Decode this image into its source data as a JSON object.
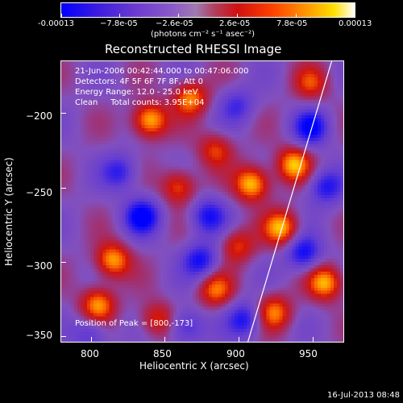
{
  "colorbar": {
    "labels": [
      "-0.00013",
      "−7.8e-05",
      "−2.6e-05",
      "2.6e-05",
      "7.8e-05",
      "0.00013"
    ],
    "unit": "(photons cm⁻² s⁻¹ asec⁻²)",
    "colors": [
      "#0000ff",
      "#8b5ac8",
      "#d01010",
      "#ff9a00",
      "#ffffff"
    ],
    "range": [
      -0.00013,
      0.00013
    ]
  },
  "plot": {
    "title": "Reconstructed RHESSI Image",
    "annotations": [
      "21-Jun-2006 00:42:44.000 to 00:47:06.000",
      "Detectors: 4F 5F 6F 7F 8F, Att 0",
      "Energy Range: 12.0 - 25.0 keV",
      "Clean     Total counts: 3.95E+04"
    ],
    "peak_label": "Position of Peak = [800,-173]"
  },
  "footer": {
    "timestamp": "16-Jul-2013 08:48"
  },
  "chart_data": {
    "type": "heatmap",
    "title": "Reconstructed RHESSI Image",
    "xlabel": "Heliocentric X (arcsec)",
    "ylabel": "Heliocentric Y (arcsec)",
    "xlim": [
      780,
      972
    ],
    "ylim": [
      -355,
      -165
    ],
    "xticks": [
      800,
      850,
      900,
      950
    ],
    "yticks": [
      -200,
      -250,
      -300,
      -350
    ],
    "xtick_labels": [
      "800",
      "850",
      "900",
      "950"
    ],
    "ytick_labels": [
      "−200",
      "−250",
      "−300",
      "−350"
    ],
    "limb_line": [
      [
        963,
        -165
      ],
      [
        906,
        -355
      ]
    ],
    "peak_position": [
      800,
      -173
    ],
    "colorbar_range": [
      -0.00013,
      0.00013
    ],
    "hotspots": [
      {
        "x": 910,
        "y": -248,
        "v": 1.0
      },
      {
        "x": 938,
        "y": -235,
        "v": 0.9
      },
      {
        "x": 840,
        "y": -205,
        "v": 1.0
      },
      {
        "x": 815,
        "y": -300,
        "v": 0.9
      },
      {
        "x": 805,
        "y": -330,
        "v": 0.85
      },
      {
        "x": 868,
        "y": -190,
        "v": 0.8
      },
      {
        "x": 860,
        "y": -250,
        "v": 0.7
      },
      {
        "x": 900,
        "y": -290,
        "v": 0.6
      },
      {
        "x": 930,
        "y": -278,
        "v": 0.9
      },
      {
        "x": 885,
        "y": -320,
        "v": 0.7
      },
      {
        "x": 960,
        "y": -315,
        "v": 0.9
      },
      {
        "x": 925,
        "y": -335,
        "v": 0.75
      },
      {
        "x": 845,
        "y": -340,
        "v": 0.6
      },
      {
        "x": 885,
        "y": -225,
        "v": 0.6
      },
      {
        "x": 950,
        "y": -180,
        "v": 0.55
      }
    ],
    "coldspots": [
      {
        "x": 950,
        "y": -210,
        "v": -0.8
      },
      {
        "x": 835,
        "y": -270,
        "v": -0.9
      },
      {
        "x": 880,
        "y": -270,
        "v": -0.7
      },
      {
        "x": 960,
        "y": -250,
        "v": -0.7
      },
      {
        "x": 820,
        "y": -240,
        "v": -0.6
      },
      {
        "x": 875,
        "y": -300,
        "v": -0.75
      },
      {
        "x": 905,
        "y": -340,
        "v": -0.7
      },
      {
        "x": 945,
        "y": -295,
        "v": -0.8
      },
      {
        "x": 800,
        "y": -350,
        "v": -0.5
      },
      {
        "x": 865,
        "y": -345,
        "v": -0.6
      },
      {
        "x": 900,
        "y": -195,
        "v": -0.5
      }
    ]
  }
}
